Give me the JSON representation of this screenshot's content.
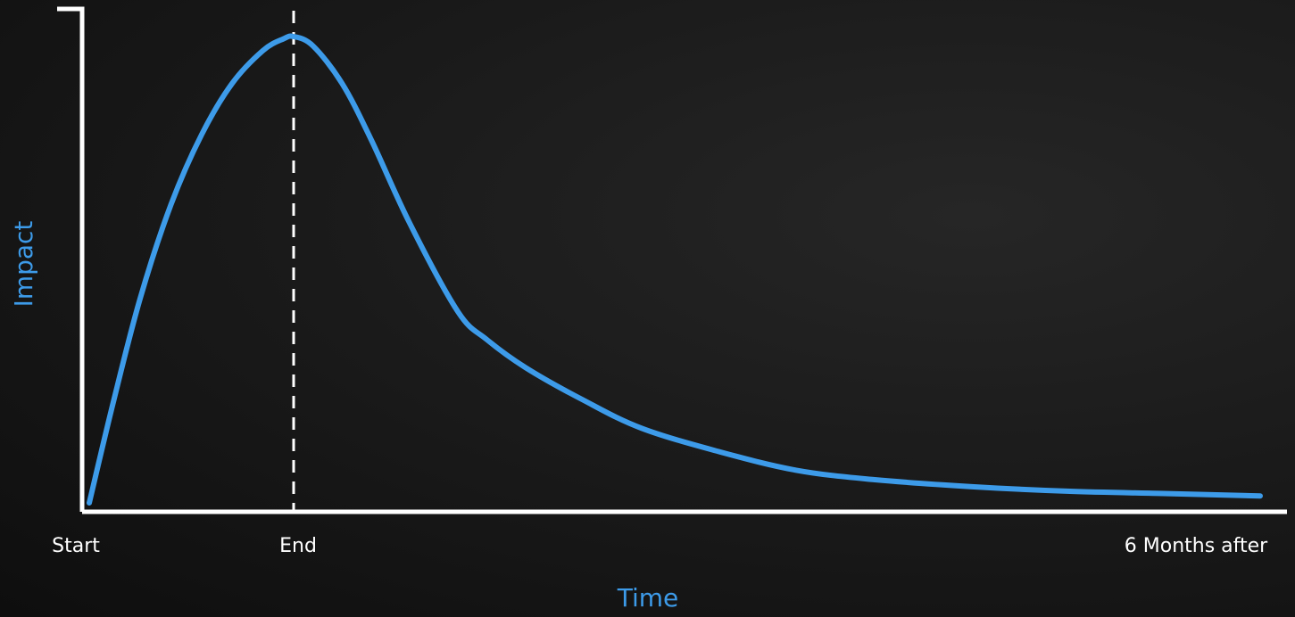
{
  "chart_data": {
    "type": "line",
    "xlabel": "Time",
    "ylabel": "Impact",
    "x_tick_labels": [
      "Start",
      "End",
      "6 Months after"
    ],
    "x_tick_positions": [
      0,
      1,
      6
    ],
    "xlim": [
      0,
      6
    ],
    "ylim": [
      0,
      100
    ],
    "reference_line": {
      "x": 1,
      "style": "dashed"
    },
    "grid": false,
    "series": [
      {
        "x": [
          0,
          0.12,
          0.25,
          0.4,
          0.55,
          0.7,
          0.85,
          0.95,
          1.0,
          1.1,
          1.25,
          1.4,
          1.6,
          1.85,
          2.0,
          2.2,
          2.5,
          2.8,
          3.2,
          3.6,
          4.0,
          4.5,
          5.0,
          5.5,
          6.0
        ],
        "y": [
          0,
          22,
          44,
          64,
          79,
          90,
          97,
          99.5,
          100,
          98,
          90,
          78,
          60,
          41,
          35,
          29,
          22,
          16,
          11,
          7,
          5,
          3.5,
          2.5,
          2.0,
          1.5
        ]
      }
    ],
    "colors": {
      "line": "#3d9be9",
      "axis": "#ffffff",
      "axis_title": "#3d9be9",
      "reference_line": "#ffffff"
    }
  }
}
